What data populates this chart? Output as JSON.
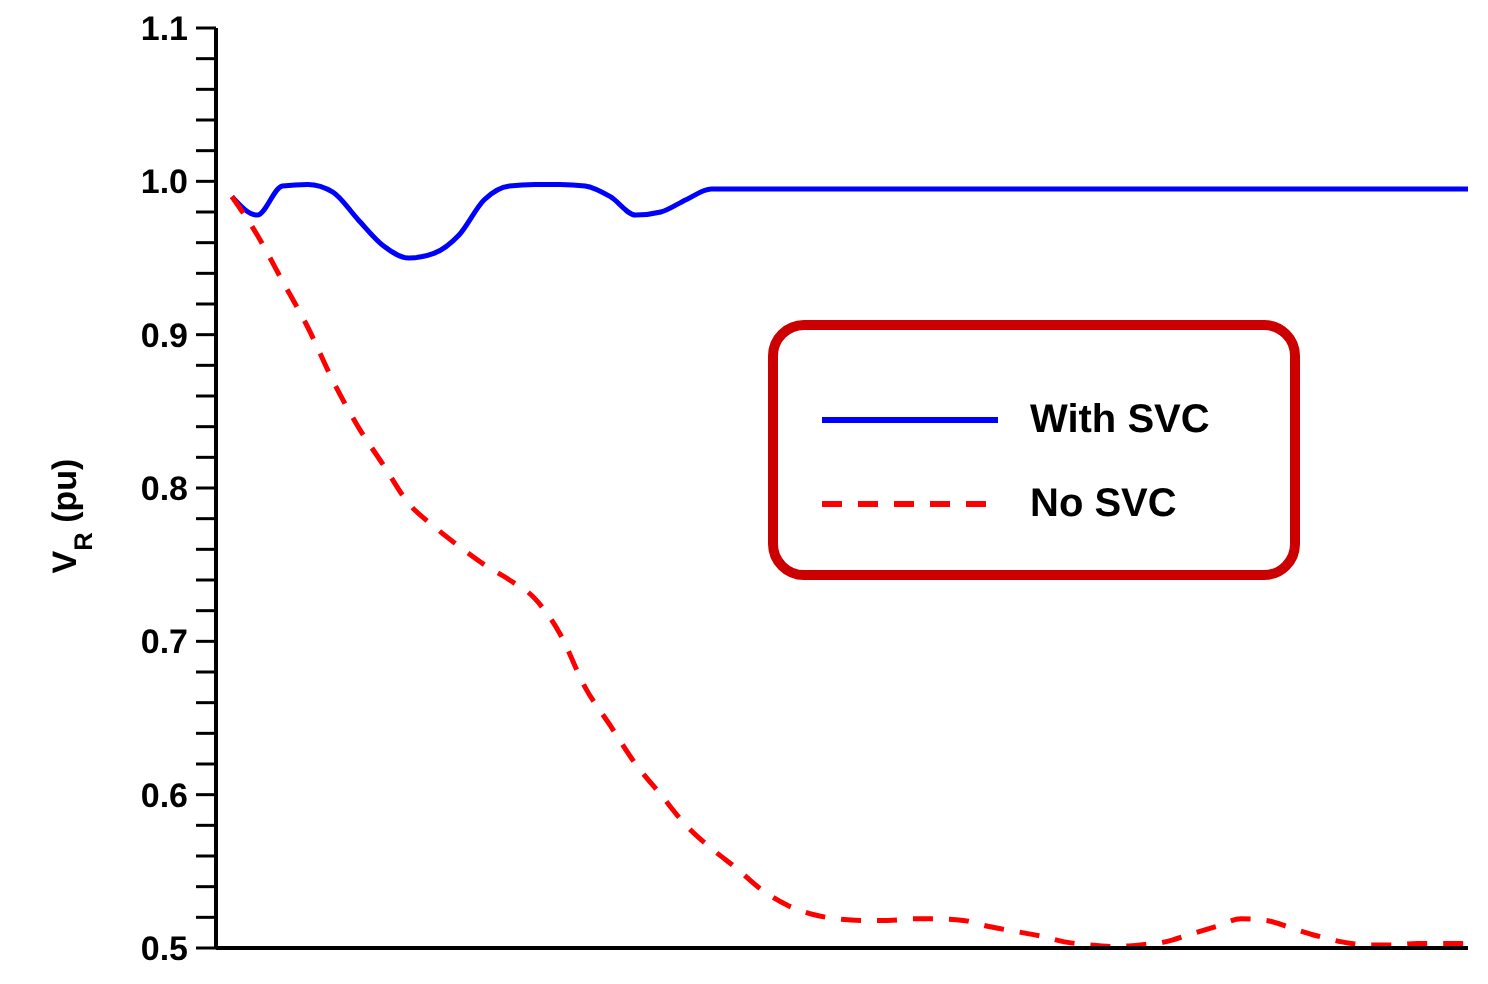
{
  "chart_data": {
    "type": "line",
    "ylabel": "V$_{R}$ (pu)",
    "tick_labels": "y",
    "grid": false,
    "legend": "right",
    "marker": "none",
    "categories": [
      null,
      null,
      null,
      null,
      null,
      null,
      null,
      null,
      null,
      null,
      null,
      null,
      null,
      null,
      null,
      null,
      null,
      null,
      null,
      null,
      null,
      null,
      null,
      null,
      null,
      null,
      null,
      null,
      null,
      null,
      null,
      null,
      null,
      null,
      null,
      null,
      null,
      null,
      null,
      null,
      null,
      null,
      null,
      null,
      null,
      null,
      null,
      null,
      null,
      null
    ],
    "ylim": [
      0.5,
      1.1
    ],
    "yticks": [
      0.5,
      {
        "value": 0.52,
        "label": null
      },
      {
        "value": 0.54,
        "label": null
      },
      {
        "value": 0.56,
        "label": null
      },
      {
        "value": 0.58,
        "label": null
      },
      0.6,
      {
        "value": 0.62,
        "label": null
      },
      {
        "value": 0.64,
        "label": null
      },
      {
        "value": 0.66,
        "label": null
      },
      {
        "value": 0.68,
        "label": null
      },
      0.7,
      {
        "value": 0.72,
        "label": null
      },
      {
        "value": 0.74,
        "label": null
      },
      {
        "value": 0.76,
        "label": null
      },
      {
        "value": 0.78,
        "label": null
      },
      0.8,
      {
        "value": 0.82,
        "label": null
      },
      {
        "value": 0.84,
        "label": null
      },
      {
        "value": 0.86,
        "label": null
      },
      {
        "value": 0.88,
        "label": null
      },
      0.9,
      {
        "value": 0.92,
        "label": null
      },
      {
        "value": 0.94,
        "label": null
      },
      {
        "value": 0.96,
        "label": null
      },
      {
        "value": 0.98,
        "label": null
      },
      {
        "value": 1.0,
        "label": "1.0"
      },
      {
        "value": 1.02,
        "label": null
      },
      {
        "value": 1.04,
        "label": null
      },
      {
        "value": 1.06,
        "label": null
      },
      {
        "value": 1.08,
        "label": null
      },
      1.1
    ],
    "series": [
      {
        "name": "With SVC",
        "color": "#0000ff",
        "line_style": "solid",
        "values": [
          0.99,
          0.978,
          0.997,
          0.998,
          0.993,
          0.975,
          0.958,
          0.95,
          0.953,
          0.965,
          0.988,
          0.997,
          0.998,
          0.998,
          0.997,
          0.99,
          0.978,
          0.98,
          0.988,
          0.995,
          0.995,
          0.995,
          0.995,
          0.995,
          0.995,
          0.995,
          0.995,
          0.995,
          0.995,
          0.995,
          0.995,
          0.995,
          0.995,
          0.995,
          0.995,
          0.995,
          0.995,
          0.995,
          0.995,
          0.995,
          0.995,
          0.995,
          0.995,
          0.995,
          0.995,
          0.995,
          0.995,
          0.995,
          0.995,
          0.995
        ]
      },
      {
        "name": "No SVC",
        "color": "#ff0000",
        "line_style": "dashed",
        "values": [
          0.99,
          0.965,
          0.935,
          0.905,
          0.87,
          0.84,
          0.815,
          0.79,
          0.775,
          0.762,
          0.75,
          0.74,
          0.728,
          0.705,
          0.67,
          0.645,
          0.62,
          0.6,
          0.58,
          0.565,
          0.552,
          0.538,
          0.528,
          0.522,
          0.519,
          0.518,
          0.518,
          0.519,
          0.519,
          0.518,
          0.514,
          0.511,
          0.508,
          0.504,
          0.502,
          0.501,
          0.502,
          0.504,
          0.509,
          0.514,
          0.519,
          0.518,
          0.513,
          0.508,
          0.504,
          0.502,
          0.502,
          0.503,
          0.503,
          0.503
        ]
      }
    ]
  }
}
